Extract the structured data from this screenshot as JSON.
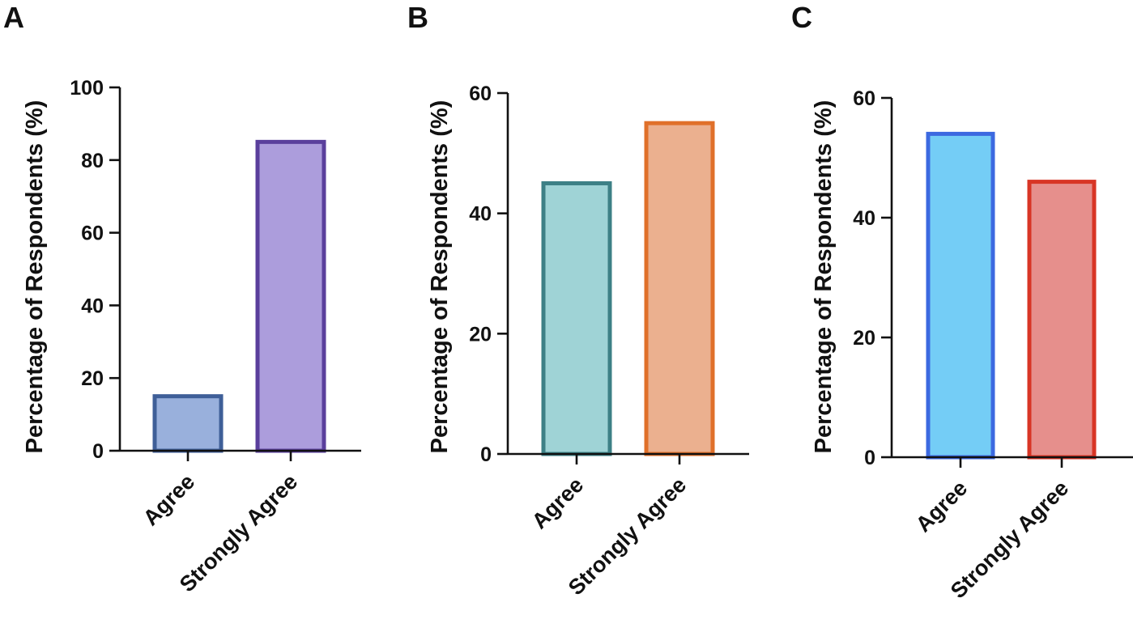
{
  "chart_data": [
    {
      "type": "bar",
      "panel": "A",
      "ylabel": "Percentage of Respondents (%)",
      "categories": [
        "Agree",
        "Strongly Agree"
      ],
      "values": [
        15,
        85
      ],
      "ylim": [
        0,
        100
      ],
      "yticks": [
        0,
        20,
        40,
        60,
        80,
        100
      ],
      "fill_colors": [
        "#99b0dc",
        "#ac9ddc"
      ],
      "edge_colors": [
        "#3f5f98",
        "#5a3f9c"
      ]
    },
    {
      "type": "bar",
      "panel": "B",
      "ylabel": "Percentage of Respondents (%)",
      "categories": [
        "Agree",
        "Strongly Agree"
      ],
      "values": [
        45,
        55
      ],
      "ylim": [
        0,
        60
      ],
      "yticks": [
        0,
        20,
        40,
        60
      ],
      "fill_colors": [
        "#9fd3d6",
        "#ebb08f"
      ],
      "edge_colors": [
        "#3d8086",
        "#e0702a"
      ]
    },
    {
      "type": "bar",
      "panel": "C",
      "ylabel": "Percentage of Respondents (%)",
      "categories": [
        "Agree",
        "Strongly Agree"
      ],
      "values": [
        54,
        46
      ],
      "ylim": [
        0,
        60
      ],
      "yticks": [
        0,
        20,
        40,
        60
      ],
      "fill_colors": [
        "#74cdf6",
        "#e68f8c"
      ],
      "edge_colors": [
        "#3c69e0",
        "#d83525"
      ]
    }
  ]
}
